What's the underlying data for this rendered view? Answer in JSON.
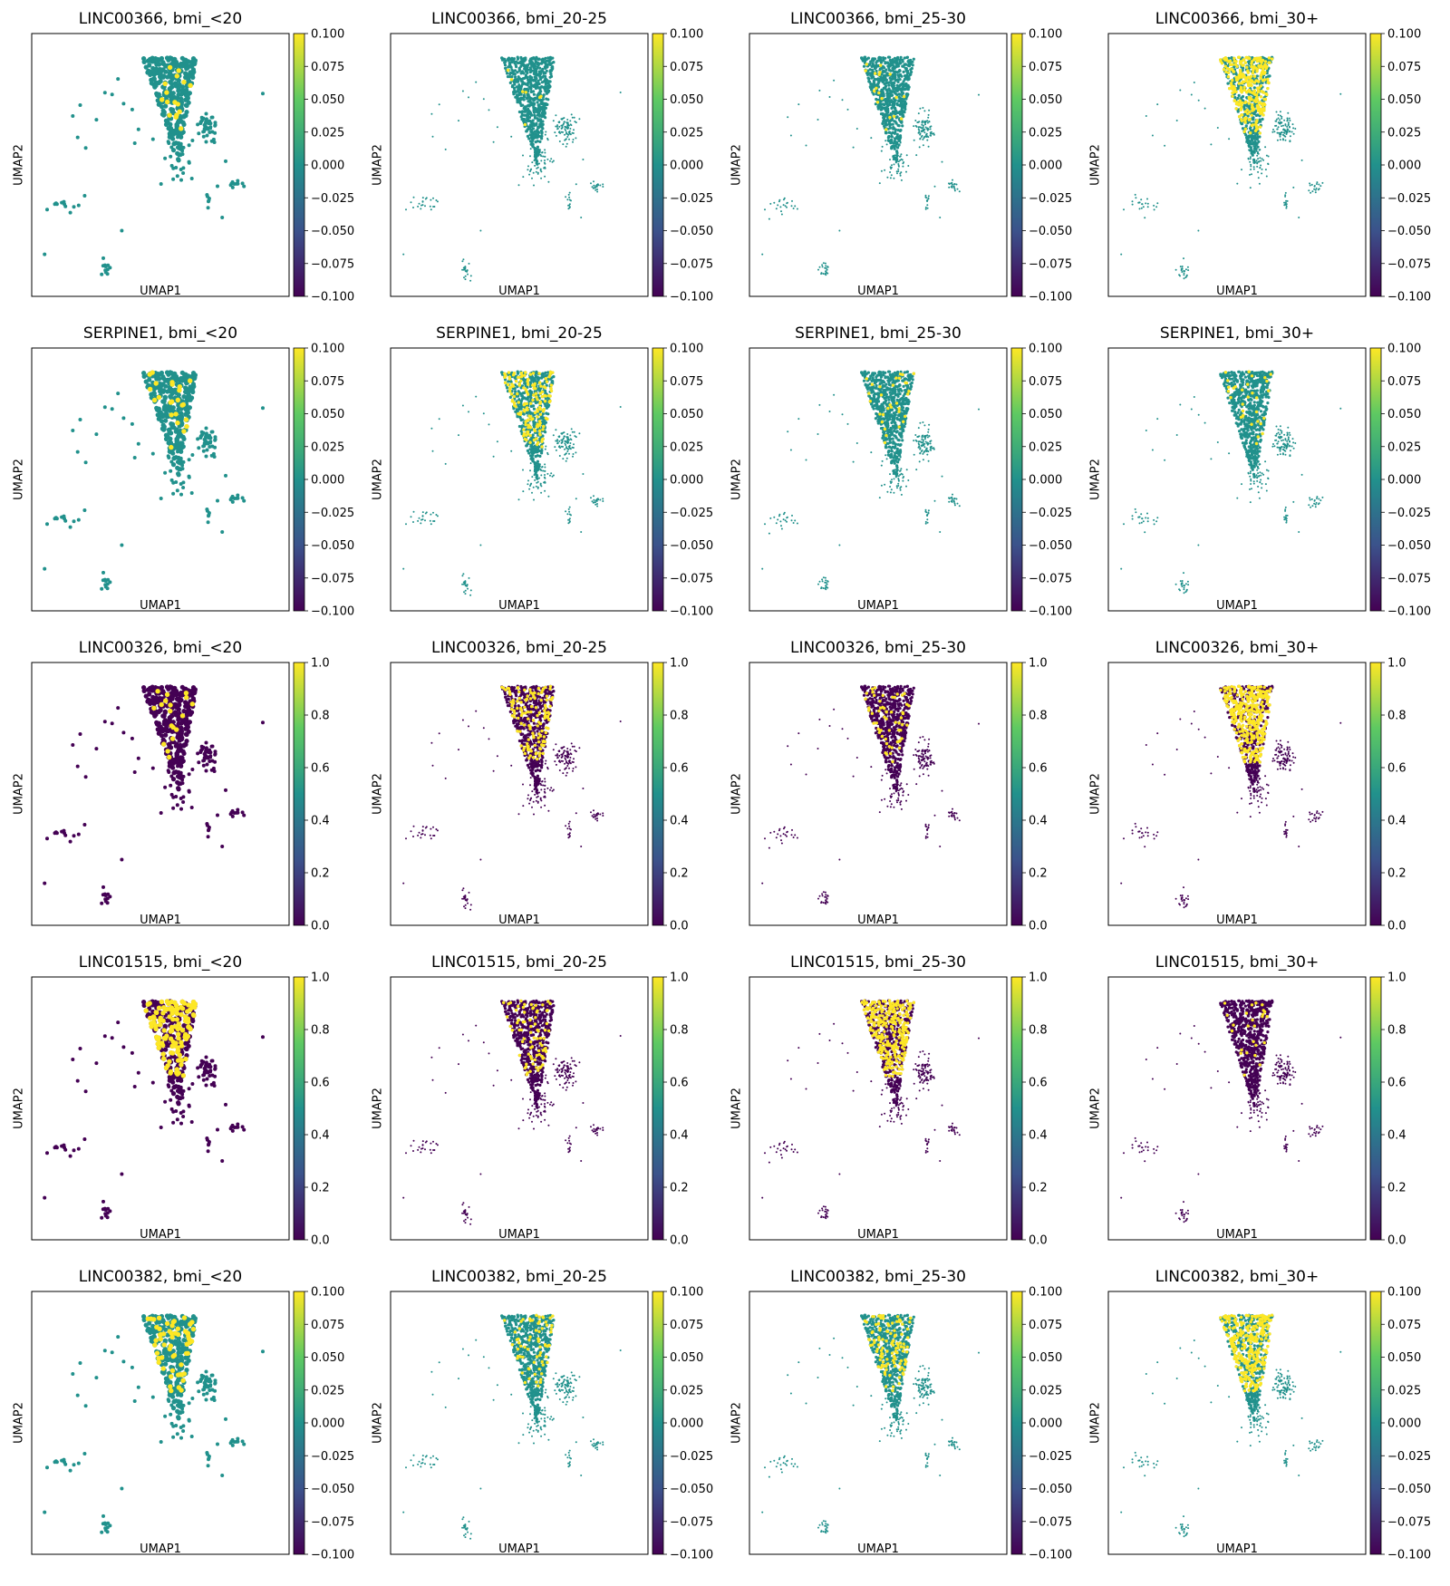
{
  "colorscale": {
    "name": "viridis",
    "stops": [
      "#440154",
      "#3b528b",
      "#21918c",
      "#5ec962",
      "#fde725"
    ],
    "low_color": "#440154",
    "zero_color": "#21918c",
    "high_color": "#fde725"
  },
  "chart_data": [
    {
      "type": "scatter",
      "title": "LINC00366, bmi_<20",
      "xlabel": "UMAP1",
      "ylabel": "UMAP2",
      "row": 0,
      "col": 0,
      "colorbar": {
        "range": [
          -0.1,
          0.1
        ],
        "ticks": [
          "0.100",
          "0.075",
          "0.050",
          "0.025",
          "0.000",
          "−0.025",
          "−0.050",
          "−0.075",
          "−0.100"
        ]
      },
      "highlight_density": 0.05,
      "background": "zero"
    },
    {
      "type": "scatter",
      "title": "LINC00366, bmi_20-25",
      "xlabel": "UMAP1",
      "ylabel": "UMAP2",
      "row": 0,
      "col": 1,
      "colorbar": {
        "range": [
          -0.1,
          0.1
        ],
        "ticks": [
          "0.100",
          "0.075",
          "0.050",
          "0.025",
          "0.000",
          "−0.025",
          "−0.050",
          "−0.075",
          "−0.100"
        ]
      },
      "highlight_density": 0.01,
      "background": "zero"
    },
    {
      "type": "scatter",
      "title": "LINC00366, bmi_25-30",
      "xlabel": "UMAP1",
      "ylabel": "UMAP2",
      "row": 0,
      "col": 2,
      "colorbar": {
        "range": [
          -0.1,
          0.1
        ],
        "ticks": [
          "0.100",
          "0.075",
          "0.050",
          "0.025",
          "0.000",
          "−0.025",
          "−0.050",
          "−0.075",
          "−0.100"
        ]
      },
      "highlight_density": 0.03,
      "background": "zero"
    },
    {
      "type": "scatter",
      "title": "LINC00366, bmi_30+",
      "xlabel": "UMAP1",
      "ylabel": "UMAP2",
      "row": 0,
      "col": 3,
      "colorbar": {
        "range": [
          -0.1,
          0.1
        ],
        "ticks": [
          "0.100",
          "0.075",
          "0.050",
          "0.025",
          "0.000",
          "−0.025",
          "−0.050",
          "−0.075",
          "−0.100"
        ]
      },
      "highlight_density": 0.45,
      "background": "zero"
    },
    {
      "type": "scatter",
      "title": "SERPINE1, bmi_<20",
      "xlabel": "UMAP1",
      "ylabel": "UMAP2",
      "row": 1,
      "col": 0,
      "colorbar": {
        "range": [
          -0.1,
          0.1
        ],
        "ticks": [
          "0.100",
          "0.075",
          "0.050",
          "0.025",
          "0.000",
          "−0.025",
          "−0.050",
          "−0.075",
          "−0.100"
        ]
      },
      "highlight_density": 0.06,
      "background": "zero"
    },
    {
      "type": "scatter",
      "title": "SERPINE1, bmi_20-25",
      "xlabel": "UMAP1",
      "ylabel": "UMAP2",
      "row": 1,
      "col": 1,
      "colorbar": {
        "range": [
          -0.1,
          0.1
        ],
        "ticks": [
          "0.100",
          "0.075",
          "0.050",
          "0.025",
          "0.000",
          "−0.025",
          "−0.050",
          "−0.075",
          "−0.100"
        ]
      },
      "highlight_density": 0.25,
      "background": "zero"
    },
    {
      "type": "scatter",
      "title": "SERPINE1, bmi_25-30",
      "xlabel": "UMAP1",
      "ylabel": "UMAP2",
      "row": 1,
      "col": 2,
      "colorbar": {
        "range": [
          -0.1,
          0.1
        ],
        "ticks": [
          "0.100",
          "0.075",
          "0.050",
          "0.025",
          "0.000",
          "−0.025",
          "−0.050",
          "−0.075",
          "−0.100"
        ]
      },
      "highlight_density": 0.05,
      "background": "zero"
    },
    {
      "type": "scatter",
      "title": "SERPINE1, bmi_30+",
      "xlabel": "UMAP1",
      "ylabel": "UMAP2",
      "row": 1,
      "col": 3,
      "colorbar": {
        "range": [
          -0.1,
          0.1
        ],
        "ticks": [
          "0.100",
          "0.075",
          "0.050",
          "0.025",
          "0.000",
          "−0.025",
          "−0.050",
          "−0.075",
          "−0.100"
        ]
      },
      "highlight_density": 0.08,
      "background": "zero"
    },
    {
      "type": "scatter",
      "title": "LINC00326, bmi_<20",
      "xlabel": "UMAP1",
      "ylabel": "UMAP2",
      "row": 2,
      "col": 0,
      "colorbar": {
        "range": [
          0.0,
          1.0
        ],
        "ticks": [
          "1.0",
          "0.8",
          "0.6",
          "0.4",
          "0.2",
          "0.0"
        ]
      },
      "highlight_density": 0.06,
      "background": "low"
    },
    {
      "type": "scatter",
      "title": "LINC00326, bmi_20-25",
      "xlabel": "UMAP1",
      "ylabel": "UMAP2",
      "row": 2,
      "col": 1,
      "colorbar": {
        "range": [
          0.0,
          1.0
        ],
        "ticks": [
          "1.0",
          "0.8",
          "0.6",
          "0.4",
          "0.2",
          "0.0"
        ]
      },
      "highlight_density": 0.2,
      "background": "low"
    },
    {
      "type": "scatter",
      "title": "LINC00326, bmi_25-30",
      "xlabel": "UMAP1",
      "ylabel": "UMAP2",
      "row": 2,
      "col": 2,
      "colorbar": {
        "range": [
          0.0,
          1.0
        ],
        "ticks": [
          "1.0",
          "0.8",
          "0.6",
          "0.4",
          "0.2",
          "0.0"
        ]
      },
      "highlight_density": 0.12,
      "background": "low"
    },
    {
      "type": "scatter",
      "title": "LINC00326, bmi_30+",
      "xlabel": "UMAP1",
      "ylabel": "UMAP2",
      "row": 2,
      "col": 3,
      "colorbar": {
        "range": [
          0.0,
          1.0
        ],
        "ticks": [
          "1.0",
          "0.8",
          "0.6",
          "0.4",
          "0.2",
          "0.0"
        ]
      },
      "highlight_density": 0.55,
      "background": "low"
    },
    {
      "type": "scatter",
      "title": "LINC01515, bmi_<20",
      "xlabel": "UMAP1",
      "ylabel": "UMAP2",
      "row": 3,
      "col": 0,
      "colorbar": {
        "range": [
          0.0,
          1.0
        ],
        "ticks": [
          "1.0",
          "0.8",
          "0.6",
          "0.4",
          "0.2",
          "0.0"
        ]
      },
      "highlight_density": 0.4,
      "background": "low"
    },
    {
      "type": "scatter",
      "title": "LINC01515, bmi_20-25",
      "xlabel": "UMAP1",
      "ylabel": "UMAP2",
      "row": 3,
      "col": 1,
      "colorbar": {
        "range": [
          0.0,
          1.0
        ],
        "ticks": [
          "1.0",
          "0.8",
          "0.6",
          "0.4",
          "0.2",
          "0.0"
        ]
      },
      "highlight_density": 0.12,
      "background": "low"
    },
    {
      "type": "scatter",
      "title": "LINC01515, bmi_25-30",
      "xlabel": "UMAP1",
      "ylabel": "UMAP2",
      "row": 3,
      "col": 2,
      "colorbar": {
        "range": [
          0.0,
          1.0
        ],
        "ticks": [
          "1.0",
          "0.8",
          "0.6",
          "0.4",
          "0.2",
          "0.0"
        ]
      },
      "highlight_density": 0.45,
      "background": "low"
    },
    {
      "type": "scatter",
      "title": "LINC01515, bmi_30+",
      "xlabel": "UMAP1",
      "ylabel": "UMAP2",
      "row": 3,
      "col": 3,
      "colorbar": {
        "range": [
          0.0,
          1.0
        ],
        "ticks": [
          "1.0",
          "0.8",
          "0.6",
          "0.4",
          "0.2",
          "0.0"
        ]
      },
      "highlight_density": 0.04,
      "background": "low"
    },
    {
      "type": "scatter",
      "title": "LINC00382, bmi_<20",
      "xlabel": "UMAP1",
      "ylabel": "UMAP2",
      "row": 4,
      "col": 0,
      "colorbar": {
        "range": [
          -0.1,
          0.1
        ],
        "ticks": [
          "0.100",
          "0.075",
          "0.050",
          "0.025",
          "0.000",
          "−0.025",
          "−0.050",
          "−0.075",
          "−0.100"
        ]
      },
      "highlight_density": 0.2,
      "background": "zero"
    },
    {
      "type": "scatter",
      "title": "LINC00382, bmi_20-25",
      "xlabel": "UMAP1",
      "ylabel": "UMAP2",
      "row": 4,
      "col": 1,
      "colorbar": {
        "range": [
          -0.1,
          0.1
        ],
        "ticks": [
          "0.100",
          "0.075",
          "0.050",
          "0.025",
          "0.000",
          "−0.025",
          "−0.050",
          "−0.075",
          "−0.100"
        ]
      },
      "highlight_density": 0.12,
      "background": "zero"
    },
    {
      "type": "scatter",
      "title": "LINC00382, bmi_25-30",
      "xlabel": "UMAP1",
      "ylabel": "UMAP2",
      "row": 4,
      "col": 2,
      "colorbar": {
        "range": [
          -0.1,
          0.1
        ],
        "ticks": [
          "0.100",
          "0.075",
          "0.050",
          "0.025",
          "0.000",
          "−0.025",
          "−0.050",
          "−0.075",
          "−0.100"
        ]
      },
      "highlight_density": 0.18,
      "background": "zero"
    },
    {
      "type": "scatter",
      "title": "LINC00382, bmi_30+",
      "xlabel": "UMAP1",
      "ylabel": "UMAP2",
      "row": 4,
      "col": 3,
      "colorbar": {
        "range": [
          -0.1,
          0.1
        ],
        "ticks": [
          "0.100",
          "0.075",
          "0.050",
          "0.025",
          "0.000",
          "−0.025",
          "−0.050",
          "−0.075",
          "−0.100"
        ]
      },
      "highlight_density": 0.45,
      "background": "zero"
    }
  ]
}
